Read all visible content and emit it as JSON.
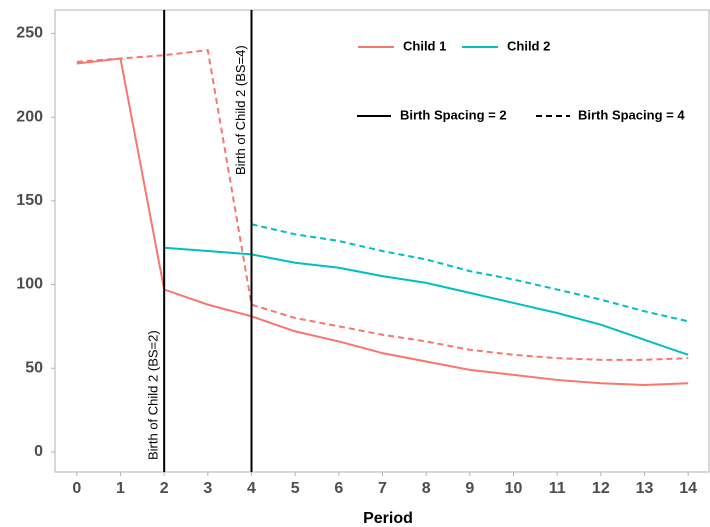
{
  "chart_data": {
    "type": "line",
    "xlabel": "Period",
    "x": [
      0,
      1,
      2,
      3,
      4,
      5,
      6,
      7,
      8,
      9,
      10,
      11,
      12,
      13,
      14
    ],
    "xlim": [
      -0.5,
      14.5
    ],
    "xticks": [
      0,
      1,
      2,
      3,
      4,
      5,
      6,
      7,
      8,
      9,
      10,
      11,
      12,
      13,
      14
    ],
    "ylim": [
      -12,
      264
    ],
    "yticks": [
      0,
      50,
      100,
      150,
      200,
      250
    ],
    "color_legend": [
      {
        "label": "Child 1",
        "color": "#f8766d"
      },
      {
        "label": "Child 2",
        "color": "#00bfc4"
      }
    ],
    "linetype_legend": [
      {
        "label": "Birth Spacing = 2",
        "dash": "solid"
      },
      {
        "label": "Birth Spacing = 4",
        "dash": "dashed"
      }
    ],
    "series": [
      {
        "color": "#f8766d",
        "dash": "solid",
        "values": [
          232,
          235,
          97,
          88,
          81,
          72,
          66,
          59,
          54,
          49,
          46,
          43,
          41,
          40,
          41
        ]
      },
      {
        "color": "#f8766d",
        "dash": "dashed",
        "values": [
          233,
          235,
          237,
          240,
          88,
          80,
          75,
          70,
          66,
          61,
          58,
          56,
          55,
          55,
          56
        ]
      },
      {
        "color": "#00bfc4",
        "dash": "solid",
        "values": [
          null,
          null,
          122,
          120,
          118,
          113,
          110,
          105,
          101,
          95,
          89,
          83,
          76,
          67,
          58
        ]
      },
      {
        "color": "#00bfc4",
        "dash": "dashed",
        "values": [
          null,
          null,
          null,
          null,
          136,
          130,
          126,
          120,
          115,
          108,
          103,
          97,
          91,
          84,
          78
        ]
      }
    ],
    "vlines": [
      {
        "x": 2,
        "label": "Birth of Child 2 (BS=2)"
      },
      {
        "x": 4,
        "label": "Birth of Child 2 (BS=4)"
      }
    ]
  }
}
